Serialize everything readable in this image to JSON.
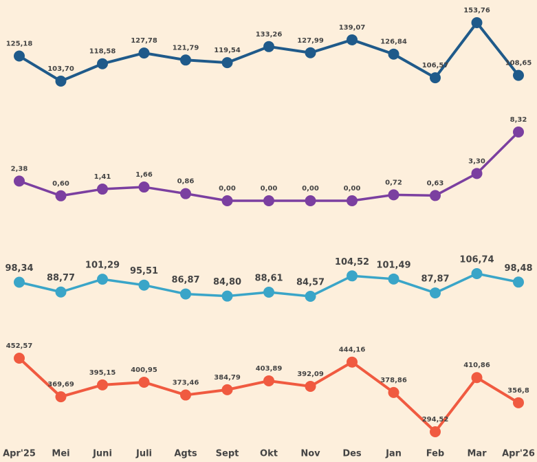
{
  "chart_data": {
    "type": "line",
    "categories": [
      "Apr'25",
      "Mei",
      "Juni",
      "Juli",
      "Agts",
      "Sept",
      "Okt",
      "Nov",
      "Des",
      "Jan",
      "Feb",
      "Mar",
      "Apr'26"
    ],
    "series": [
      {
        "color": "#1f5a8a",
        "values": [
          125.18,
          103.7,
          118.58,
          127.78,
          121.79,
          119.54,
          133.26,
          127.99,
          139.07,
          126.84,
          106.57,
          153.76,
          108.65
        ],
        "value_labels": [
          "125,18",
          "103,70",
          "118,58",
          "127,78",
          "121,79",
          "119,54",
          "133,26",
          "127,99",
          "139,07",
          "126,84",
          "106,57",
          "153,76",
          "108,65"
        ]
      },
      {
        "color": "#7b3fa0",
        "values": [
          2.38,
          0.6,
          1.41,
          1.66,
          0.86,
          0.0,
          0.0,
          0.0,
          0.0,
          0.72,
          0.63,
          3.3,
          8.32
        ],
        "value_labels": [
          "2,38",
          "0,60",
          "1,41",
          "1,66",
          "0,86",
          "0,00",
          "0,00",
          "0,00",
          "0,00",
          "0,72",
          "0,63",
          "3,30",
          "8,32"
        ]
      },
      {
        "color": "#3aa5c8",
        "values": [
          98.34,
          88.77,
          101.29,
          95.51,
          86.87,
          84.8,
          88.61,
          84.57,
          104.52,
          101.49,
          87.87,
          106.74,
          98.48
        ],
        "value_labels": [
          "98,34",
          "88,77",
          "101,29",
          "95,51",
          "86,87",
          "84,80",
          "88,61",
          "84,57",
          "104,52",
          "101,49",
          "87,87",
          "106,74",
          "98,48"
        ]
      },
      {
        "color": "#f05a40",
        "values": [
          452.57,
          369.69,
          395.15,
          400.95,
          373.46,
          384.79,
          403.89,
          392.09,
          444.16,
          378.86,
          294.52,
          410.86,
          356.8
        ],
        "value_labels": [
          "452,57",
          "369,69",
          "395,15",
          "400,95",
          "373,46",
          "384,79",
          "403,89",
          "392,09",
          "444,16",
          "378,86",
          "294,52",
          "410,86",
          "356,8"
        ]
      }
    ]
  }
}
